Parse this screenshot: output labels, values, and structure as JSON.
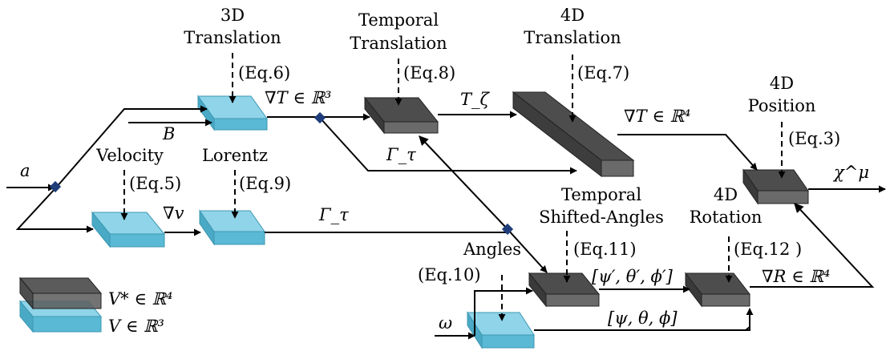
{
  "colors": {
    "light_block": "#67c3dc",
    "dark_block": "#555555",
    "junction": "#1f3d7a",
    "line": "#000000"
  },
  "blocks": {
    "translation3d": {
      "title1": "3D",
      "title2": "Translation",
      "eq": "(Eq.6)"
    },
    "temporal_translation": {
      "title1": "Temporal",
      "title2": "Translation",
      "eq": "(Eq.8)"
    },
    "translation4d": {
      "title1": "4D",
      "title2": "Translation",
      "eq": "(Eq.7)"
    },
    "position4d": {
      "title1": "4D",
      "title2": "Position",
      "eq": "(Eq.3)"
    },
    "velocity": {
      "title": "Velocity",
      "eq": "(Eq.5)"
    },
    "lorentz": {
      "title": "Lorentz",
      "eq": "(Eq.9)"
    },
    "shifted_angles": {
      "title1": "Temporal",
      "title2": "Shifted-Angles",
      "eq": "(Eq.11)"
    },
    "rotation4d": {
      "title1": "4D",
      "title2": "Rotation",
      "eq": "(Eq.12 )"
    },
    "angles": {
      "title": "Angles",
      "eq": "(Eq.10)"
    }
  },
  "signals": {
    "a": "a",
    "B": "B",
    "grad_T3": "∇T ∈ ℝ³",
    "T_zeta": "T_ζ",
    "grad_T4": "∇T ∈ ℝ⁴",
    "chi_mu": "χ^μ",
    "grad_v": "∇v",
    "gamma_tau_top": "Γ_τ",
    "gamma_tau_mid": "Γ_τ",
    "shifted_angles": "[ψ′, θ′, ϕ′]",
    "angles": "[ψ, θ, ϕ]",
    "grad_R": "∇R ∈ ℝ⁴",
    "omega": "ω"
  },
  "legend": {
    "dark": "V* ∈ ℝ⁴",
    "light": "V ∈ ℝ³"
  }
}
